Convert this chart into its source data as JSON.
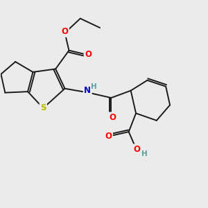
{
  "bg_color": "#ebebeb",
  "bond_color": "#1a1a1a",
  "bond_width": 1.4,
  "atom_colors": {
    "O": "#ff0000",
    "N": "#0000cd",
    "S": "#b8b800",
    "H_gray": "#5f9ea0",
    "C": "#1a1a1a"
  },
  "font_size_atom": 8.5,
  "font_size_h": 7.5
}
